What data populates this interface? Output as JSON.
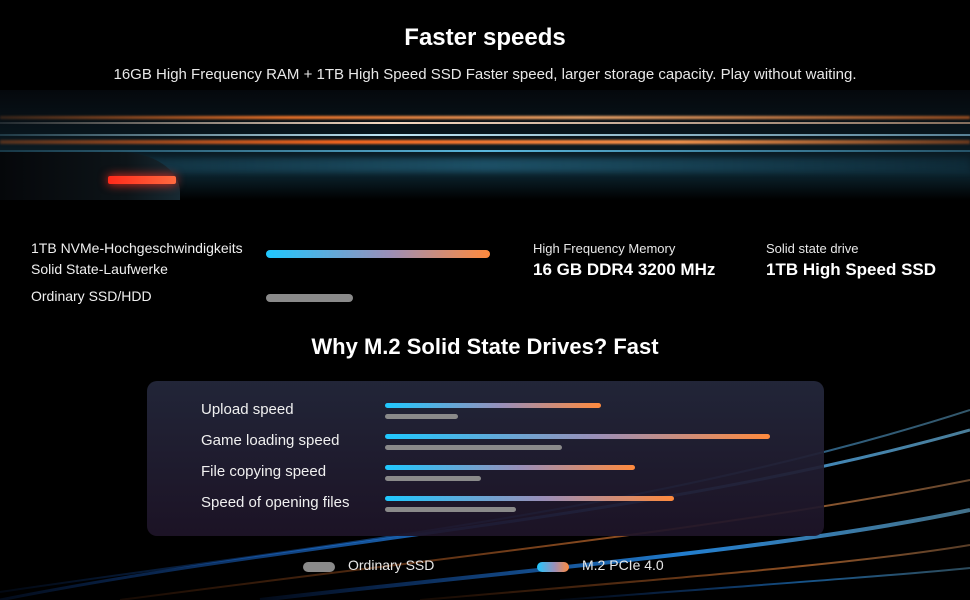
{
  "header": {
    "title": "Faster speeds",
    "subtitle": "16GB High Frequency RAM + 1TB High Speed SSD Faster speed, larger storage capacity. Play without waiting."
  },
  "comparison": {
    "nvme_label_line1": "1TB NVMe-Hochgeschwindigkeits",
    "nvme_label_line2": "Solid State-Laufwerke",
    "ordinary_label": "Ordinary SSD/HDD",
    "nvme_level": 1.0,
    "ordinary_level": 0.39
  },
  "specs": {
    "memory_label": "High Frequency Memory",
    "memory_value": "16 GB DDR4 3200 MHz",
    "ssd_label": "Solid state drive",
    "ssd_value": "1TB High Speed SSD"
  },
  "section_title": "Why M.2 Solid State Drives? Fast",
  "chart_data": {
    "type": "bar",
    "title": "Why M.2 Solid State Drives? Fast",
    "orientation": "horizontal",
    "categories": [
      "Upload speed",
      "Game loading speed",
      "File copying speed",
      "Speed of opening files"
    ],
    "series": [
      {
        "name": "M.2 PCIe 4.0",
        "values": [
          0.56,
          1.0,
          0.65,
          0.75
        ]
      },
      {
        "name": "Ordinary SSD",
        "values": [
          0.19,
          0.46,
          0.25,
          0.34
        ]
      }
    ],
    "legend": "bottom-center",
    "grid": false,
    "xlim": [
      0,
      1
    ]
  },
  "legend": {
    "ordinary": "Ordinary SSD",
    "m2": "M.2 PCIe 4.0"
  },
  "colors": {
    "gradient_start": "#1fc8ff",
    "gradient_end": "#ff8a3d",
    "ordinary": "#8a8a8a",
    "panel": "#24283c"
  }
}
